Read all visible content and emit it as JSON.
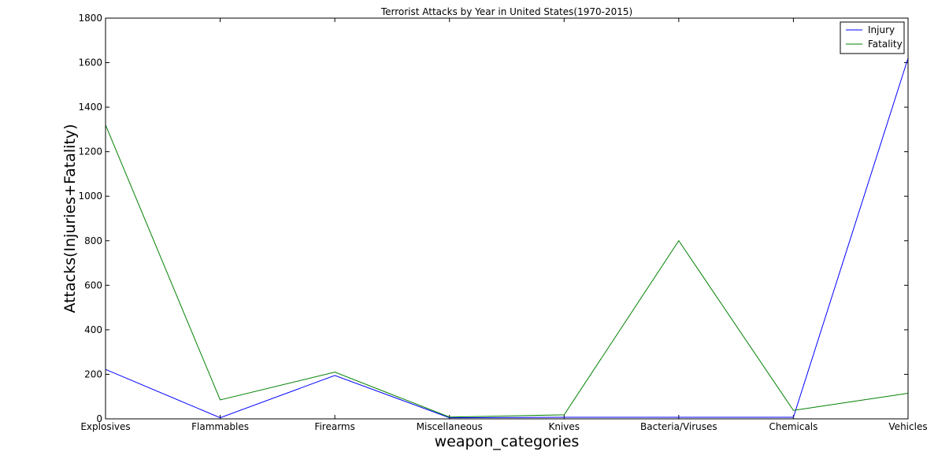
{
  "chart_data": {
    "type": "line",
    "title": "Terrorist Attacks by Year in United States(1970-2015)",
    "xlabel": "weapon_categories",
    "ylabel": "Attacks(Injuries+Fatality)",
    "categories": [
      "Explosives",
      "Flammables",
      "Firearms",
      "Miscellaneous",
      "Knives",
      "Bacteria/Viruses",
      "Chemicals",
      "Vehicles"
    ],
    "series": [
      {
        "name": "Injury",
        "color": "#0000ff",
        "values": [
          222,
          5,
          195,
          5,
          7,
          7,
          7,
          1620
        ]
      },
      {
        "name": "Fatality",
        "color": "#008000",
        "values": [
          1320,
          85,
          210,
          8,
          18,
          800,
          38,
          115
        ]
      }
    ],
    "ylim": [
      0,
      1800
    ],
    "yticks": [
      0,
      200,
      400,
      600,
      800,
      1000,
      1200,
      1400,
      1600,
      1800
    ],
    "grid": false,
    "legend_position": "top-right"
  }
}
